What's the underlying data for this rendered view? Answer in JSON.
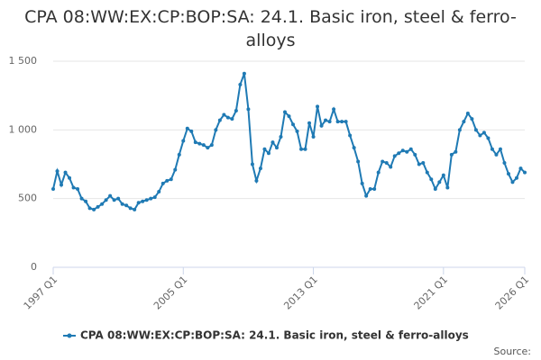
{
  "chart_data": {
    "type": "line",
    "title": "CPA 08:WW:EX:CP:BOP:SA: 24.1. Basic iron, steel & ferro-alloys",
    "source": "Source:",
    "categories": [
      "1997 Q1",
      null,
      null,
      null,
      null,
      null,
      null,
      null,
      null,
      null,
      null,
      null,
      null,
      null,
      null,
      null,
      null,
      null,
      null,
      null,
      null,
      null,
      null,
      null,
      null,
      null,
      null,
      null,
      null,
      null,
      null,
      null,
      "2005 Q1",
      null,
      null,
      null,
      null,
      null,
      null,
      null,
      null,
      null,
      null,
      null,
      null,
      null,
      null,
      null,
      null,
      null,
      null,
      null,
      null,
      null,
      null,
      null,
      null,
      null,
      null,
      null,
      null,
      null,
      null,
      null,
      "2013 Q1",
      null,
      null,
      null,
      null,
      null,
      null,
      null,
      null,
      null,
      null,
      null,
      null,
      null,
      null,
      null,
      null,
      null,
      null,
      null,
      null,
      null,
      null,
      null,
      null,
      null,
      null,
      null,
      null,
      null,
      null,
      null,
      "2021 Q1",
      null,
      null,
      null,
      null,
      null,
      null,
      null,
      null,
      null,
      null,
      null,
      null,
      null,
      null,
      null,
      null,
      null,
      null,
      null,
      "2026 Q1"
    ],
    "series": [
      {
        "name": "CPA 08:WW:EX:CP:BOP:SA: 24.1. Basic iron, steel & ferro-alloys",
        "color": "#1f7ab4",
        "values": [
          570,
          700,
          600,
          690,
          650,
          580,
          570,
          500,
          480,
          430,
          420,
          440,
          460,
          490,
          520,
          490,
          500,
          460,
          450,
          430,
          420,
          470,
          480,
          490,
          500,
          510,
          550,
          610,
          630,
          640,
          710,
          820,
          920,
          1010,
          990,
          910,
          900,
          890,
          870,
          890,
          1000,
          1070,
          1110,
          1090,
          1080,
          1140,
          1330,
          1410,
          1150,
          750,
          630,
          720,
          860,
          830,
          910,
          870,
          950,
          1130,
          1100,
          1040,
          990,
          860,
          860,
          1050,
          950,
          1170,
          1030,
          1070,
          1060,
          1150,
          1060,
          1060,
          1060,
          960,
          870,
          770,
          610,
          520,
          570,
          570,
          690,
          770,
          760,
          730,
          810,
          830,
          850,
          840,
          860,
          820,
          750,
          760,
          690,
          640,
          570,
          620,
          670,
          580,
          820,
          840,
          1000,
          1060,
          1120,
          1080,
          1000,
          960,
          980,
          940,
          860,
          820,
          860,
          760,
          680,
          620,
          650,
          720,
          690
        ]
      }
    ],
    "ylim": [
      0,
      1500
    ],
    "yticks": [
      0,
      500,
      {
        "value": 1000,
        "label": "1 000"
      },
      {
        "value": 1500,
        "label": "1 500"
      }
    ],
    "grid": true
  }
}
